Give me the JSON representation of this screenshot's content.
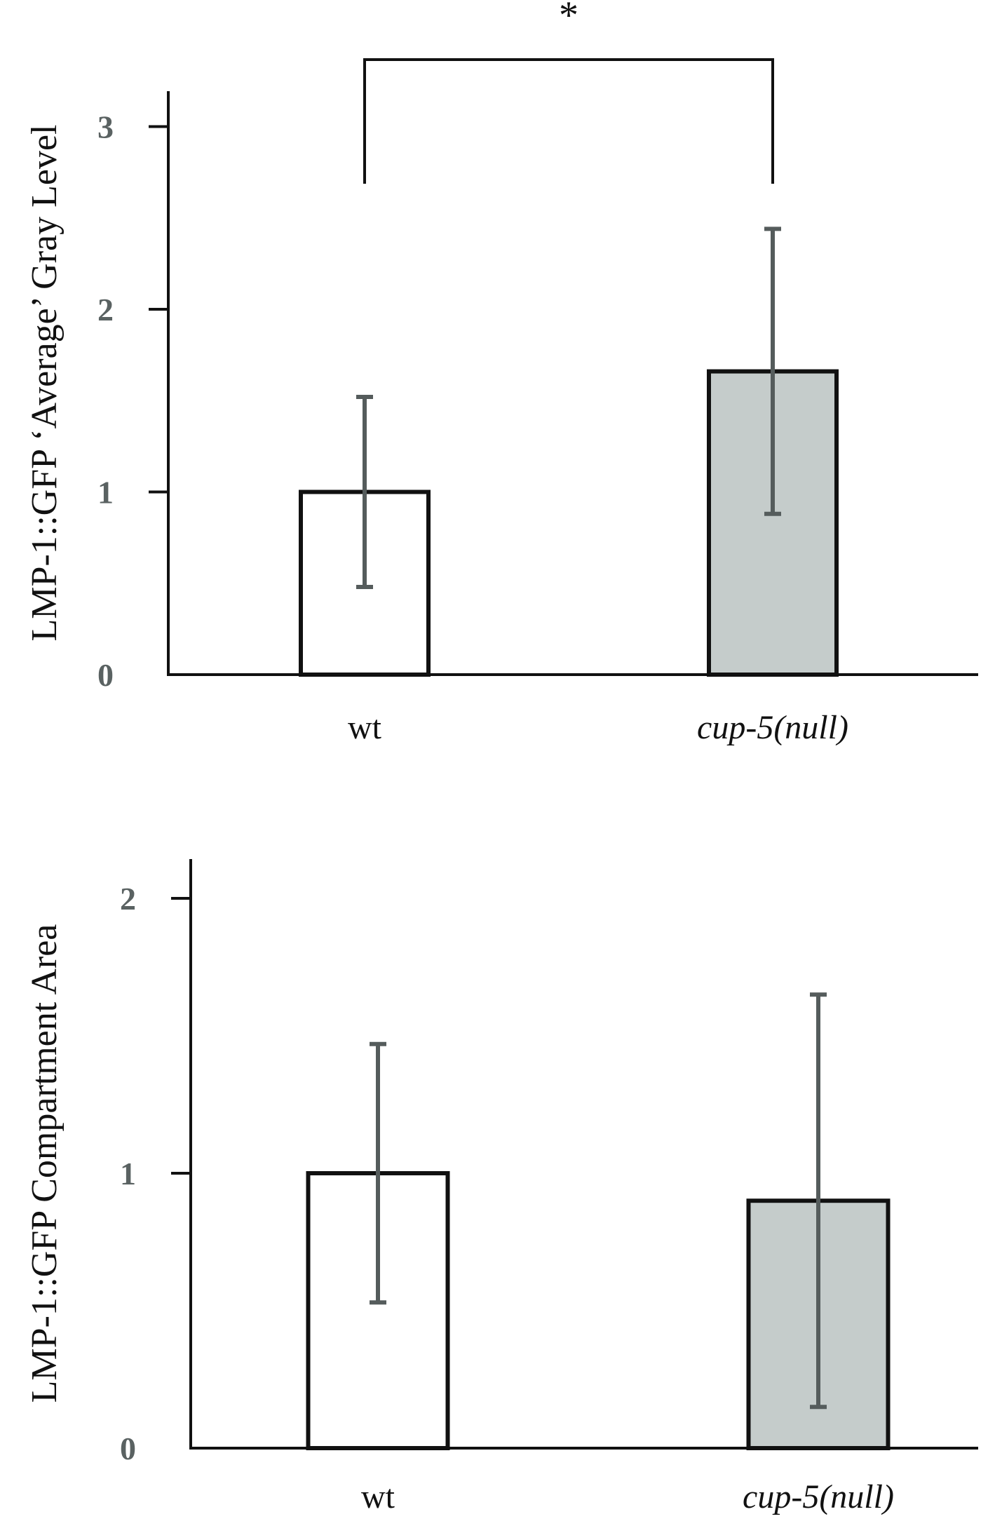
{
  "chart_data": [
    {
      "type": "bar",
      "categories": [
        "wt",
        "cup-5(null)"
      ],
      "category_italic": [
        false,
        true
      ],
      "values": [
        1.0,
        1.66
      ],
      "errors": [
        0.52,
        0.78
      ],
      "bar_colors": [
        "#ffffff",
        "#c5cccb"
      ],
      "ylabel": "LMP-1::GFP ‘Average’ Gray Level",
      "xlabel": "",
      "ylim": [
        0,
        3.25
      ],
      "yticks": [
        0,
        1,
        2,
        3
      ],
      "significance": {
        "between": [
          0,
          1
        ],
        "label": "*"
      },
      "grid": false
    },
    {
      "type": "bar",
      "categories": [
        "wt",
        "cup-5(null)"
      ],
      "category_italic": [
        false,
        true
      ],
      "values": [
        1.0,
        0.9
      ],
      "errors": [
        0.47,
        0.75
      ],
      "bar_colors": [
        "#ffffff",
        "#c5cccb"
      ],
      "ylabel": "LMP-1::GFP Compartment Area",
      "xlabel": "",
      "ylim": [
        0,
        2.2
      ],
      "yticks": [
        0,
        1,
        2
      ],
      "grid": false
    }
  ],
  "colors": {
    "axis": "#111111",
    "bar_edge": "#111111",
    "error_bar": "#555c5c",
    "tick_label": "#5a6262"
  }
}
